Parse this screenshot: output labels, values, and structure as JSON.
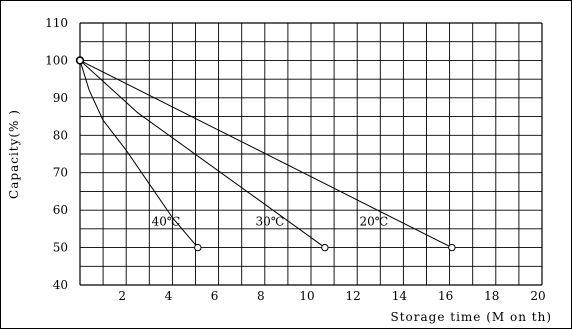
{
  "chart_data": {
    "type": "line",
    "title": "",
    "xlabel": "Storage time (M on th)",
    "ylabel": "Capacity(% )",
    "xlim": [
      0,
      20
    ],
    "ylim": [
      40,
      110
    ],
    "xticks": [
      2,
      4,
      6,
      8,
      10,
      12,
      14,
      16,
      18,
      20
    ],
    "yticks": [
      40,
      50,
      60,
      70,
      80,
      90,
      100,
      110
    ],
    "grid": true,
    "minor_grid_x": 1,
    "minor_grid_y": 5,
    "series": [
      {
        "name": "40℃",
        "x": [
          0,
          0.4,
          1.0,
          2.0,
          3.0,
          4.0,
          5.1
        ],
        "y": [
          100,
          92,
          84,
          76,
          67,
          58,
          50
        ],
        "end_marker": "open-circle"
      },
      {
        "name": "30℃",
        "x": [
          0,
          2.5,
          10.6
        ],
        "y": [
          100,
          86,
          50
        ],
        "end_marker": "open-circle"
      },
      {
        "name": "20℃",
        "x": [
          0,
          16.1
        ],
        "y": [
          100,
          50
        ],
        "end_marker": "open-circle"
      }
    ],
    "label_positions": [
      {
        "series": "40℃",
        "x": 3.1,
        "y": 57
      },
      {
        "series": "30℃",
        "x": 7.6,
        "y": 57
      },
      {
        "series": "20℃",
        "x": 12.1,
        "y": 57
      }
    ],
    "colors": {
      "line": "#000000",
      "grid": "#000000",
      "background": "#ffffff"
    }
  }
}
